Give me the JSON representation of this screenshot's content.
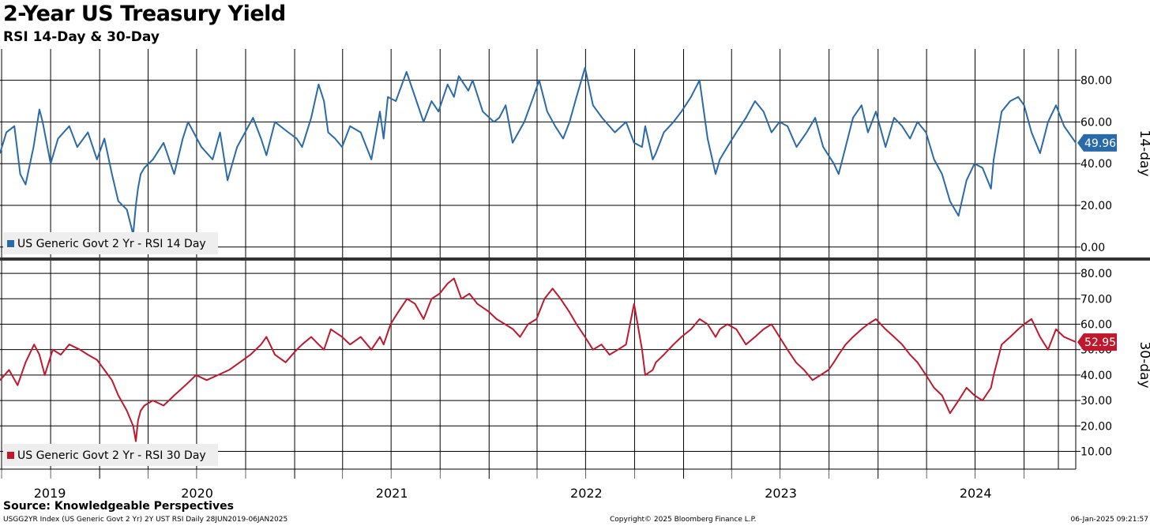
{
  "chart_data": {
    "type": "line",
    "title": "2-Year US Treasury Yield",
    "subtitle": "RSI 14-Day & 30-Day",
    "x_range": [
      "2019-06-28",
      "2025-01-06"
    ],
    "x_tick_labels": [
      "2019",
      "2020",
      "2021",
      "2022",
      "2023",
      "2024"
    ],
    "panels": [
      {
        "id": "rsi14",
        "ylabel": "14-day",
        "ylim": [
          -5,
          95
        ],
        "yticks": [
          0,
          20,
          40,
          60,
          80
        ],
        "ytick_labels": [
          "0.00",
          "20.00",
          "40.00",
          "60.00",
          "80.00"
        ],
        "color": "#2a6aa8",
        "last_value_label": "49.96",
        "legend": "US Generic Govt 2 Yr - RSI 14 Day",
        "legend_position": "bottom-left",
        "series": [
          {
            "name": "US Generic Govt 2 Yr - RSI 14 Day",
            "x": [
              "2019-06-28",
              "2019-07-10",
              "2019-07-25",
              "2019-08-05",
              "2019-08-15",
              "2019-08-30",
              "2019-09-10",
              "2019-09-16",
              "2019-10-01",
              "2019-10-15",
              "2019-11-05",
              "2019-11-20",
              "2019-12-10",
              "2019-12-27",
              "2020-01-10",
              "2020-01-24",
              "2020-02-05",
              "2020-02-21",
              "2020-03-04",
              "2020-03-09",
              "2020-03-13",
              "2020-03-18",
              "2020-03-25",
              "2020-04-10",
              "2020-04-30",
              "2020-05-20",
              "2020-06-05",
              "2020-06-15",
              "2020-07-10",
              "2020-07-31",
              "2020-08-14",
              "2020-08-28",
              "2020-09-15",
              "2020-09-30",
              "2020-10-15",
              "2020-10-30",
              "2020-11-09",
              "2020-11-25",
              "2020-12-15",
              "2021-01-05",
              "2021-01-15",
              "2021-02-01",
              "2021-02-15",
              "2021-02-25",
              "2021-03-05",
              "2021-03-18",
              "2021-03-31",
              "2021-04-15",
              "2021-05-05",
              "2021-05-25",
              "2021-06-10",
              "2021-06-17",
              "2021-06-25",
              "2021-07-10",
              "2021-07-30",
              "2021-08-15",
              "2021-08-31",
              "2021-09-15",
              "2021-09-28",
              "2021-10-15",
              "2021-10-27",
              "2021-11-05",
              "2021-11-23",
              "2021-12-01",
              "2021-12-20",
              "2022-01-10",
              "2022-01-20",
              "2022-02-01",
              "2022-02-14",
              "2022-02-25",
              "2022-03-08",
              "2022-03-25",
              "2022-04-05",
              "2022-04-20",
              "2022-05-05",
              "2022-05-20",
              "2022-06-01",
              "2022-06-14",
              "2022-06-30",
              "2022-07-15",
              "2022-08-01",
              "2022-08-25",
              "2022-09-15",
              "2022-09-30",
              "2022-10-15",
              "2022-10-21",
              "2022-11-04",
              "2022-11-10",
              "2022-11-25",
              "2022-12-13",
              "2022-12-28",
              "2023-01-15",
              "2023-01-31",
              "2023-02-15",
              "2023-03-02",
              "2023-03-10",
              "2023-03-24",
              "2023-04-10",
              "2023-04-28",
              "2023-05-15",
              "2023-05-31",
              "2023-06-15",
              "2023-06-30",
              "2023-07-15",
              "2023-08-01",
              "2023-08-20",
              "2023-09-05",
              "2023-09-20",
              "2023-10-10",
              "2023-10-19",
              "2023-11-01",
              "2023-11-15",
              "2023-12-01",
              "2023-12-13",
              "2023-12-28",
              "2024-01-15",
              "2024-01-31",
              "2024-02-15",
              "2024-03-01",
              "2024-03-15",
              "2024-03-31",
              "2024-04-15",
              "2024-04-30",
              "2024-05-15",
              "2024-05-31",
              "2024-06-15",
              "2024-06-30",
              "2024-07-15",
              "2024-07-31",
              "2024-08-05",
              "2024-08-20",
              "2024-09-05",
              "2024-09-20",
              "2024-10-01",
              "2024-10-15",
              "2024-10-31",
              "2024-11-15",
              "2024-11-30",
              "2024-12-15",
              "2025-01-06"
            ],
            "values": [
              45,
              55,
              58,
              35,
              30,
              48,
              66,
              60,
              40,
              52,
              58,
              48,
              55,
              42,
              52,
              35,
              22,
              18,
              6,
              20,
              28,
              35,
              38,
              42,
              50,
              35,
              52,
              60,
              48,
              42,
              55,
              32,
              48,
              55,
              62,
              52,
              44,
              60,
              56,
              52,
              48,
              62,
              78,
              70,
              55,
              52,
              48,
              58,
              55,
              42,
              65,
              52,
              72,
              70,
              84,
              72,
              60,
              70,
              65,
              78,
              72,
              82,
              75,
              80,
              65,
              60,
              62,
              68,
              50,
              55,
              60,
              72,
              80,
              65,
              58,
              52,
              60,
              72,
              86,
              68,
              62,
              55,
              60,
              50,
              48,
              58,
              42,
              45,
              55,
              60,
              65,
              72,
              80,
              52,
              35,
              42,
              48,
              55,
              62,
              70,
              65,
              55,
              60,
              58,
              48,
              55,
              62,
              48,
              40,
              35,
              48,
              62,
              68,
              55,
              65,
              48,
              62,
              58,
              52,
              60,
              55,
              42,
              35,
              22,
              15,
              32,
              40,
              38,
              28,
              42,
              65,
              70,
              72,
              68,
              55,
              45,
              60,
              68,
              58,
              50
            ]
          }
        ]
      },
      {
        "id": "rsi30",
        "ylabel": "30-day",
        "ylim": [
          3,
          85
        ],
        "yticks": [
          10,
          20,
          30,
          40,
          50,
          60,
          70,
          80
        ],
        "ytick_labels": [
          "10.00",
          "20.00",
          "30.00",
          "40.00",
          "50.00",
          "60.00",
          "70.00",
          "80.00"
        ],
        "color": "#c0182c",
        "last_value_label": "52.95",
        "legend": "US Generic Govt 2 Yr - RSI 30 Day",
        "legend_position": "bottom-left",
        "series": [
          {
            "name": "US Generic Govt 2 Yr - RSI 30 Day",
            "x": [
              "2019-06-28",
              "2019-07-15",
              "2019-07-31",
              "2019-08-15",
              "2019-08-31",
              "2019-09-10",
              "2019-09-20",
              "2019-10-05",
              "2019-10-20",
              "2019-11-05",
              "2019-11-25",
              "2019-12-10",
              "2019-12-27",
              "2020-01-10",
              "2020-01-24",
              "2020-02-05",
              "2020-02-21",
              "2020-03-04",
              "2020-03-09",
              "2020-03-13",
              "2020-03-18",
              "2020-03-25",
              "2020-04-10",
              "2020-04-30",
              "2020-05-20",
              "2020-06-10",
              "2020-06-30",
              "2020-07-20",
              "2020-08-10",
              "2020-08-31",
              "2020-09-20",
              "2020-10-10",
              "2020-10-30",
              "2020-11-09",
              "2020-11-25",
              "2020-12-15",
              "2021-01-05",
              "2021-01-15",
              "2021-02-01",
              "2021-02-15",
              "2021-02-25",
              "2021-03-10",
              "2021-03-31",
              "2021-04-15",
              "2021-05-05",
              "2021-05-25",
              "2021-06-10",
              "2021-06-17",
              "2021-06-30",
              "2021-07-15",
              "2021-07-31",
              "2021-08-15",
              "2021-08-31",
              "2021-09-15",
              "2021-09-30",
              "2021-10-15",
              "2021-10-27",
              "2021-11-10",
              "2021-11-25",
              "2021-12-10",
              "2021-12-31",
              "2022-01-15",
              "2022-01-31",
              "2022-02-15",
              "2022-02-28",
              "2022-03-15",
              "2022-03-31",
              "2022-04-15",
              "2022-04-30",
              "2022-05-15",
              "2022-05-31",
              "2022-06-14",
              "2022-06-30",
              "2022-07-15",
              "2022-07-31",
              "2022-08-15",
              "2022-08-31",
              "2022-09-15",
              "2022-09-30",
              "2022-10-15",
              "2022-10-21",
              "2022-11-04",
              "2022-11-10",
              "2022-11-25",
              "2022-12-13",
              "2022-12-28",
              "2023-01-15",
              "2023-01-31",
              "2023-02-15",
              "2023-03-02",
              "2023-03-10",
              "2023-03-24",
              "2023-04-10",
              "2023-04-28",
              "2023-05-15",
              "2023-05-31",
              "2023-06-15",
              "2023-06-30",
              "2023-07-15",
              "2023-07-31",
              "2023-08-15",
              "2023-08-31",
              "2023-09-15",
              "2023-09-30",
              "2023-10-10",
              "2023-10-19",
              "2023-11-01",
              "2023-11-15",
              "2023-12-01",
              "2023-12-13",
              "2023-12-28",
              "2024-01-15",
              "2024-01-31",
              "2024-02-15",
              "2024-03-01",
              "2024-03-15",
              "2024-03-31",
              "2024-04-15",
              "2024-04-30",
              "2024-05-15",
              "2024-05-31",
              "2024-06-15",
              "2024-06-30",
              "2024-07-15",
              "2024-07-31",
              "2024-08-05",
              "2024-08-20",
              "2024-09-05",
              "2024-09-20",
              "2024-10-01",
              "2024-10-15",
              "2024-10-31",
              "2024-11-15",
              "2024-11-30",
              "2024-12-15",
              "2025-01-06"
            ],
            "values": [
              38,
              42,
              36,
              45,
              52,
              48,
              40,
              50,
              48,
              52,
              50,
              48,
              46,
              42,
              38,
              32,
              26,
              20,
              14,
              22,
              26,
              28,
              30,
              28,
              32,
              36,
              40,
              38,
              40,
              42,
              45,
              48,
              52,
              55,
              48,
              45,
              50,
              52,
              55,
              52,
              50,
              58,
              55,
              52,
              55,
              50,
              55,
              52,
              60,
              65,
              70,
              68,
              62,
              70,
              72,
              76,
              78,
              70,
              72,
              68,
              65,
              62,
              60,
              58,
              55,
              60,
              62,
              70,
              74,
              70,
              65,
              60,
              55,
              50,
              52,
              48,
              50,
              52,
              68,
              50,
              40,
              42,
              45,
              48,
              52,
              55,
              58,
              62,
              60,
              55,
              58,
              60,
              58,
              52,
              55,
              58,
              60,
              55,
              50,
              45,
              42,
              38,
              40,
              42,
              45,
              48,
              52,
              55,
              58,
              60,
              62,
              58,
              55,
              52,
              48,
              45,
              40,
              35,
              32,
              25,
              30,
              35,
              32,
              30,
              35,
              40,
              52,
              55,
              58,
              60,
              62,
              55,
              50,
              58,
              55,
              53
            ]
          }
        ]
      }
    ]
  },
  "source_label": "Source: Knowledgeable Perspectives",
  "footer": {
    "left": "USGG2YR Index (US Generic Govt 2 Yr) 2Y UST RSI  Daily 28JUN2019-06JAN2025",
    "center": "Copyright© 2025 Bloomberg Finance L.P.",
    "right": "06-Jan-2025 09:21:57"
  }
}
